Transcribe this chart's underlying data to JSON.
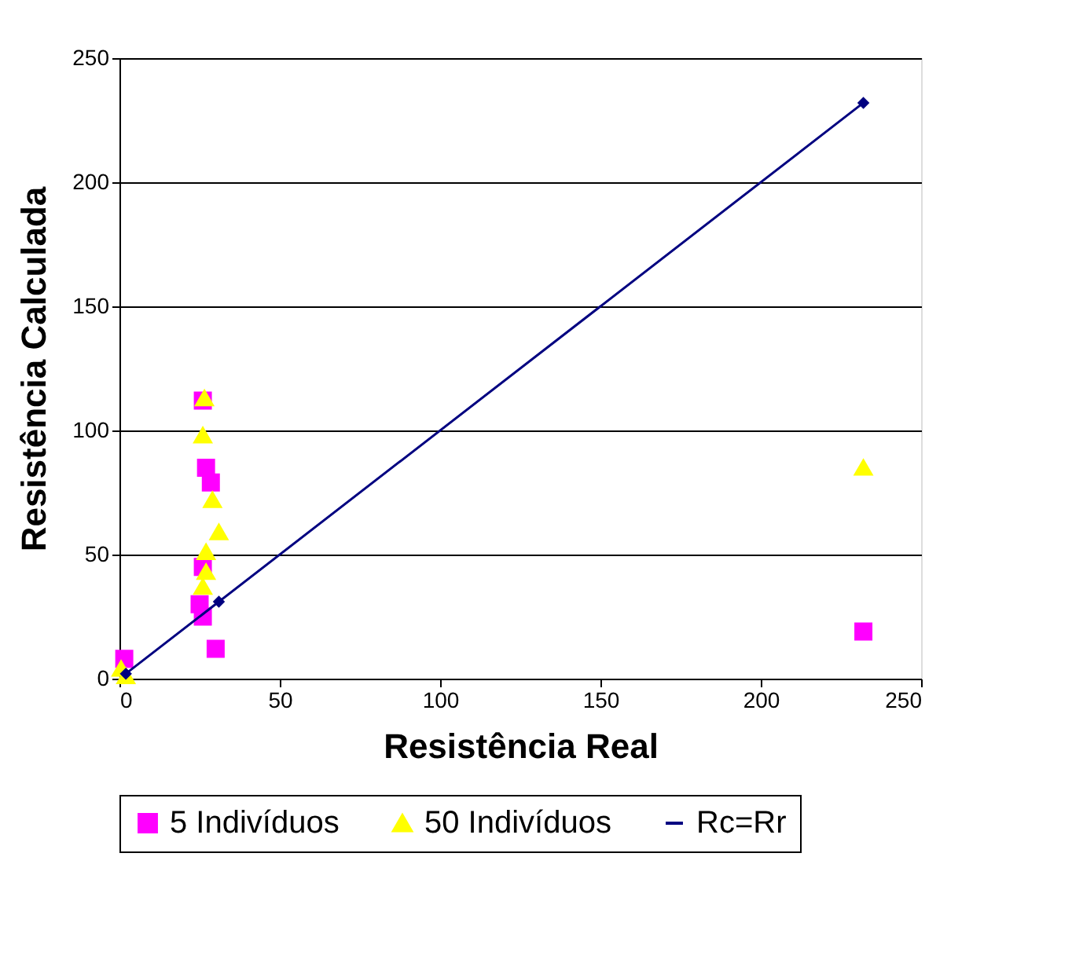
{
  "chart_data": {
    "type": "scatter",
    "xlabel": "Resistência Real",
    "ylabel": "Resistência Calculada",
    "xlim": [
      0,
      250
    ],
    "ylim": [
      0,
      250
    ],
    "xticks": [
      0,
      50,
      100,
      150,
      200,
      250
    ],
    "yticks": [
      0,
      50,
      100,
      150,
      200,
      250
    ],
    "grid": "y",
    "legend": "bottom",
    "series": [
      {
        "name": "5 Indivíduos",
        "color": "#ff00ff",
        "marker": "square",
        "x": [
          26,
          27,
          28.5,
          26,
          25,
          26,
          30,
          1.5,
          232
        ],
        "values": [
          112,
          85,
          79,
          45,
          30,
          25,
          12,
          8,
          19
        ]
      },
      {
        "name": "50 Indivíduos",
        "color": "#ffff00",
        "marker": "triangle",
        "x": [
          26.5,
          26,
          29,
          31,
          27,
          27,
          26,
          0.5,
          2,
          232
        ],
        "values": [
          113,
          98,
          72,
          59,
          51,
          43,
          37,
          4,
          1,
          85
        ]
      },
      {
        "name": "Rc=Rr",
        "type": "line",
        "color": "#000080",
        "marker": "diamond",
        "line_style": "solid",
        "x": [
          2,
          31,
          232
        ],
        "values": [
          2,
          31,
          232
        ]
      }
    ]
  }
}
